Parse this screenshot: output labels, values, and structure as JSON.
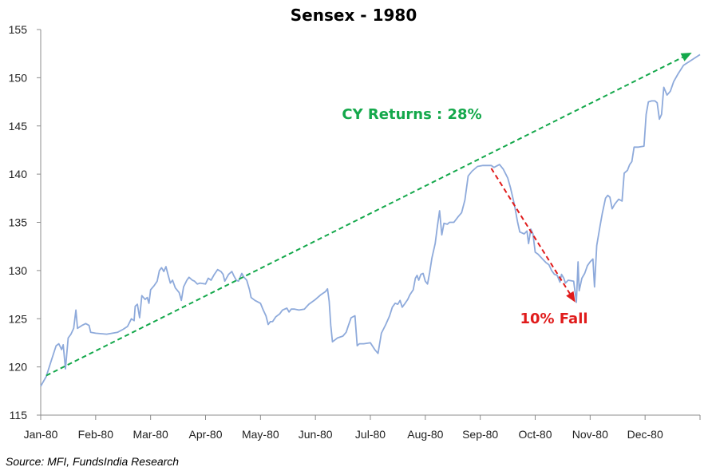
{
  "chart_data": {
    "type": "line",
    "title": "Sensex - 1980",
    "xlabel": "",
    "ylabel": "",
    "ylim": [
      115,
      155
    ],
    "yticks": [
      115,
      120,
      125,
      130,
      135,
      140,
      145,
      150,
      155
    ],
    "xticks": [
      "Jan-80",
      "Feb-80",
      "Mar-80",
      "Apr-80",
      "May-80",
      "Jun-80",
      "Jul-80",
      "Aug-80",
      "Sep-80",
      "Oct-80",
      "Nov-80",
      "Dec-80"
    ],
    "xlim": [
      0,
      12
    ],
    "grid": false,
    "series": [
      {
        "color": "#8eaadb",
        "points": [
          [
            0.0,
            118.0
          ],
          [
            0.1,
            119.0
          ],
          [
            0.2,
            120.8
          ],
          [
            0.28,
            122.2
          ],
          [
            0.33,
            122.4
          ],
          [
            0.38,
            121.8
          ],
          [
            0.41,
            122.3
          ],
          [
            0.45,
            119.8
          ],
          [
            0.5,
            123.0
          ],
          [
            0.55,
            123.4
          ],
          [
            0.6,
            124.0
          ],
          [
            0.64,
            125.9
          ],
          [
            0.67,
            124.0
          ],
          [
            0.75,
            124.3
          ],
          [
            0.82,
            124.5
          ],
          [
            0.88,
            124.3
          ],
          [
            0.91,
            123.6
          ],
          [
            1.0,
            123.5
          ],
          [
            1.2,
            123.4
          ],
          [
            1.4,
            123.6
          ],
          [
            1.5,
            123.9
          ],
          [
            1.58,
            124.2
          ],
          [
            1.65,
            125.0
          ],
          [
            1.7,
            124.8
          ],
          [
            1.72,
            126.3
          ],
          [
            1.76,
            126.5
          ],
          [
            1.8,
            125.1
          ],
          [
            1.84,
            127.4
          ],
          [
            1.9,
            127.0
          ],
          [
            1.94,
            127.2
          ],
          [
            1.97,
            126.6
          ],
          [
            2.0,
            128.0
          ],
          [
            2.06,
            128.4
          ],
          [
            2.12,
            128.9
          ],
          [
            2.16,
            130.0
          ],
          [
            2.2,
            130.3
          ],
          [
            2.24,
            129.9
          ],
          [
            2.28,
            130.4
          ],
          [
            2.32,
            129.5
          ],
          [
            2.36,
            128.7
          ],
          [
            2.4,
            129.0
          ],
          [
            2.45,
            128.2
          ],
          [
            2.52,
            127.7
          ],
          [
            2.56,
            126.9
          ],
          [
            2.6,
            128.3
          ],
          [
            2.66,
            129.0
          ],
          [
            2.7,
            129.3
          ],
          [
            2.76,
            129.0
          ],
          [
            2.8,
            128.9
          ],
          [
            2.85,
            128.6
          ],
          [
            2.9,
            128.7
          ],
          [
            3.0,
            128.6
          ],
          [
            3.05,
            129.2
          ],
          [
            3.1,
            129.0
          ],
          [
            3.16,
            129.6
          ],
          [
            3.22,
            130.1
          ],
          [
            3.28,
            129.9
          ],
          [
            3.32,
            129.6
          ],
          [
            3.35,
            128.9
          ],
          [
            3.42,
            129.6
          ],
          [
            3.48,
            129.9
          ],
          [
            3.52,
            129.4
          ],
          [
            3.56,
            129.0
          ],
          [
            3.6,
            128.9
          ],
          [
            3.66,
            129.7
          ],
          [
            3.7,
            129.3
          ],
          [
            3.75,
            129.0
          ],
          [
            3.8,
            128.0
          ],
          [
            3.83,
            127.2
          ],
          [
            3.9,
            126.9
          ],
          [
            4.0,
            126.6
          ],
          [
            4.05,
            125.9
          ],
          [
            4.1,
            125.3
          ],
          [
            4.14,
            124.4
          ],
          [
            4.18,
            124.7
          ],
          [
            4.22,
            124.7
          ],
          [
            4.28,
            125.2
          ],
          [
            4.35,
            125.5
          ],
          [
            4.4,
            125.9
          ],
          [
            4.48,
            126.1
          ],
          [
            4.52,
            125.7
          ],
          [
            4.56,
            126.0
          ],
          [
            4.62,
            126.0
          ],
          [
            4.7,
            125.9
          ],
          [
            4.8,
            126.0
          ],
          [
            4.88,
            126.5
          ],
          [
            5.0,
            127.0
          ],
          [
            5.1,
            127.5
          ],
          [
            5.18,
            127.8
          ],
          [
            5.22,
            128.1
          ],
          [
            5.25,
            126.8
          ],
          [
            5.28,
            124.3
          ],
          [
            5.31,
            122.6
          ],
          [
            5.4,
            123.0
          ],
          [
            5.5,
            123.2
          ],
          [
            5.56,
            123.6
          ],
          [
            5.6,
            124.3
          ],
          [
            5.65,
            125.1
          ],
          [
            5.72,
            125.3
          ],
          [
            5.76,
            122.2
          ],
          [
            5.8,
            122.4
          ],
          [
            5.88,
            122.4
          ],
          [
            6.0,
            122.5
          ],
          [
            6.08,
            121.8
          ],
          [
            6.14,
            121.4
          ],
          [
            6.2,
            123.5
          ],
          [
            6.28,
            124.4
          ],
          [
            6.35,
            125.3
          ],
          [
            6.4,
            126.2
          ],
          [
            6.45,
            126.6
          ],
          [
            6.5,
            126.5
          ],
          [
            6.54,
            126.9
          ],
          [
            6.58,
            126.2
          ],
          [
            6.62,
            126.5
          ],
          [
            6.68,
            127.0
          ],
          [
            6.72,
            127.5
          ],
          [
            6.78,
            128.0
          ],
          [
            6.82,
            129.2
          ],
          [
            6.85,
            129.5
          ],
          [
            6.88,
            129.0
          ],
          [
            6.92,
            129.6
          ],
          [
            6.96,
            129.7
          ],
          [
            7.0,
            128.9
          ],
          [
            7.04,
            128.6
          ],
          [
            7.08,
            129.8
          ],
          [
            7.12,
            131.3
          ],
          [
            7.18,
            132.8
          ],
          [
            7.22,
            134.6
          ],
          [
            7.26,
            136.2
          ],
          [
            7.3,
            133.7
          ],
          [
            7.34,
            134.9
          ],
          [
            7.4,
            134.8
          ],
          [
            7.44,
            135.0
          ],
          [
            7.52,
            135.0
          ],
          [
            7.6,
            135.6
          ],
          [
            7.66,
            136.0
          ],
          [
            7.72,
            137.3
          ],
          [
            7.78,
            139.8
          ],
          [
            7.85,
            140.3
          ],
          [
            7.95,
            140.8
          ],
          [
            8.05,
            140.9
          ],
          [
            8.2,
            140.9
          ],
          [
            8.25,
            140.7
          ],
          [
            8.35,
            141.0
          ],
          [
            8.42,
            140.5
          ],
          [
            8.5,
            139.6
          ],
          [
            8.55,
            138.6
          ],
          [
            8.62,
            136.9
          ],
          [
            8.68,
            135.0
          ],
          [
            8.72,
            134.0
          ],
          [
            8.8,
            133.8
          ],
          [
            8.85,
            134.1
          ],
          [
            8.88,
            132.8
          ],
          [
            8.92,
            134.3
          ],
          [
            8.96,
            133.8
          ],
          [
            9.0,
            131.9
          ],
          [
            9.05,
            131.7
          ],
          [
            9.1,
            131.4
          ],
          [
            9.15,
            131.1
          ],
          [
            9.2,
            130.8
          ],
          [
            9.25,
            130.6
          ],
          [
            9.3,
            130.0
          ],
          [
            9.35,
            129.6
          ],
          [
            9.4,
            129.5
          ],
          [
            9.45,
            128.8
          ],
          [
            9.48,
            129.6
          ],
          [
            9.52,
            129.2
          ],
          [
            9.55,
            128.7
          ],
          [
            9.6,
            129.0
          ],
          [
            9.7,
            128.9
          ],
          [
            9.75,
            126.7
          ],
          [
            9.78,
            130.9
          ],
          [
            9.8,
            127.9
          ],
          [
            9.85,
            129.2
          ],
          [
            9.9,
            129.7
          ],
          [
            9.95,
            130.5
          ],
          [
            10.0,
            130.9
          ],
          [
            10.05,
            131.2
          ],
          [
            10.08,
            128.3
          ],
          [
            10.12,
            132.6
          ],
          [
            10.18,
            134.6
          ],
          [
            10.22,
            135.9
          ],
          [
            10.28,
            137.5
          ],
          [
            10.32,
            137.8
          ],
          [
            10.36,
            137.6
          ],
          [
            10.4,
            136.4
          ],
          [
            10.45,
            136.9
          ],
          [
            10.52,
            137.4
          ],
          [
            10.58,
            137.2
          ],
          [
            10.62,
            140.1
          ],
          [
            10.68,
            140.4
          ],
          [
            10.72,
            141.0
          ],
          [
            10.76,
            141.3
          ],
          [
            10.8,
            142.8
          ],
          [
            10.88,
            142.8
          ],
          [
            10.98,
            142.9
          ],
          [
            11.02,
            146.2
          ],
          [
            11.06,
            147.5
          ],
          [
            11.12,
            147.6
          ],
          [
            11.18,
            147.6
          ],
          [
            11.22,
            147.4
          ],
          [
            11.26,
            145.7
          ],
          [
            11.3,
            146.2
          ],
          [
            11.34,
            149.0
          ],
          [
            11.4,
            148.2
          ],
          [
            11.46,
            148.6
          ],
          [
            11.52,
            149.6
          ],
          [
            11.6,
            150.4
          ],
          [
            11.7,
            151.3
          ],
          [
            12.0,
            152.4
          ]
        ]
      }
    ],
    "annotations": {
      "trend_label": "CY Returns : 28%",
      "trend_color": "#14a84b",
      "trend_line": {
        "from": [
          0.1,
          119.1
        ],
        "to": [
          11.85,
          152.6
        ]
      },
      "fall_label": "10% Fall",
      "fall_color": "#e01b1b",
      "fall_line": {
        "from": [
          8.2,
          140.6
        ],
        "to": [
          9.73,
          126.7
        ]
      }
    }
  },
  "footer": {
    "source": "Source: MFI, FundsIndia Research"
  }
}
